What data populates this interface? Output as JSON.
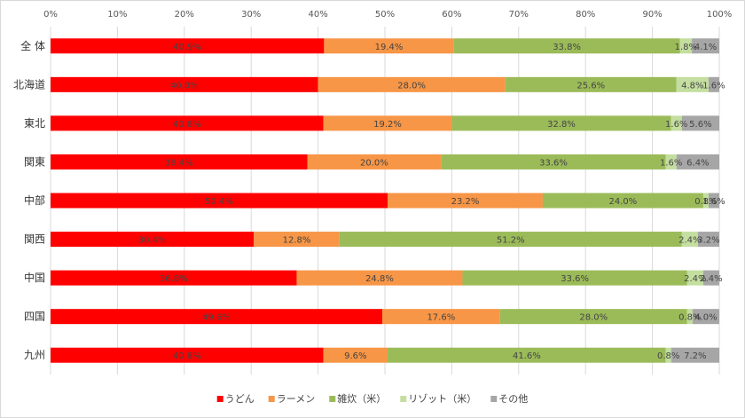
{
  "chart_data": {
    "type": "bar",
    "orientation": "horizontal",
    "stacked": true,
    "title": "",
    "xlabel": "",
    "ylabel": "",
    "xlim": [
      0,
      100
    ],
    "x_ticks": [
      "0%",
      "10%",
      "20%",
      "30%",
      "40%",
      "50%",
      "60%",
      "70%",
      "80%",
      "90%",
      "100%"
    ],
    "grid": true,
    "legend_position": "bottom",
    "categories": [
      "全 体",
      "北海道",
      "東北",
      "関東",
      "中部",
      "関西",
      "中国",
      "四国",
      "九州"
    ],
    "series": [
      {
        "name": "うどん",
        "color": "#ff0000",
        "values": [
          40.9,
          40.0,
          40.8,
          38.4,
          50.4,
          30.4,
          36.8,
          49.6,
          40.8
        ],
        "labels": [
          "40.9%",
          "40.0%",
          "40.8%",
          "38.4%",
          "50.4%",
          "30.4%",
          "36.8%",
          "49.6%",
          "40.8%"
        ]
      },
      {
        "name": "ラーメン",
        "color": "#f79646",
        "values": [
          19.4,
          28.0,
          19.2,
          20.0,
          23.2,
          12.8,
          24.8,
          17.6,
          9.6
        ],
        "labels": [
          "19.4%",
          "28.0%",
          "19.2%",
          "20.0%",
          "23.2%",
          "12.8%",
          "24.8%",
          "17.6%",
          "9.6%"
        ]
      },
      {
        "name": "雑炊（米）",
        "color": "#9bbb59",
        "values": [
          33.8,
          25.6,
          32.8,
          33.6,
          24.0,
          51.2,
          33.6,
          28.0,
          41.6
        ],
        "labels": [
          "33.8%",
          "25.6%",
          "32.8%",
          "33.6%",
          "24.0%",
          "51.2%",
          "33.6%",
          "28.0%",
          "41.6%"
        ]
      },
      {
        "name": "リゾット（米）",
        "color": "#c4dea0",
        "values": [
          1.8,
          4.8,
          1.6,
          1.6,
          0.8,
          2.4,
          2.4,
          0.8,
          0.8
        ],
        "labels": [
          "1.8%",
          "4.8%",
          "1.6%",
          "1.6%",
          "0.8%",
          "2.4%",
          "2.4%",
          "0.8%",
          "0.8%"
        ]
      },
      {
        "name": "その他",
        "color": "#a6a6a6",
        "values": [
          4.1,
          1.6,
          5.6,
          6.4,
          1.6,
          3.2,
          2.4,
          4.0,
          7.2
        ],
        "labels": [
          "4.1%",
          "1.6%",
          "5.6%",
          "6.4%",
          "1.6%",
          "3.2%",
          "2.4%",
          "4.0%",
          "7.2%"
        ]
      }
    ]
  }
}
